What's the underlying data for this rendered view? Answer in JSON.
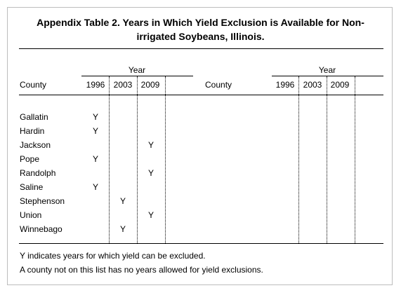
{
  "table": {
    "title_line1": "Appendix Table 2.  Years in Which Yield Exclusion is Available for Non-",
    "title_line2": "irrigated Soybeans, Illinois.",
    "year_group_label": "Year",
    "county_header": "County",
    "years": [
      "1996",
      "2003",
      "2009"
    ],
    "mark": "Y",
    "rows": [
      {
        "county": "Gallatin",
        "y1996": "Y",
        "y2003": "",
        "y2009": ""
      },
      {
        "county": "Hardin",
        "y1996": "Y",
        "y2003": "",
        "y2009": ""
      },
      {
        "county": "Jackson",
        "y1996": "",
        "y2003": "",
        "y2009": "Y"
      },
      {
        "county": "Pope",
        "y1996": "Y",
        "y2003": "",
        "y2009": ""
      },
      {
        "county": "Randolph",
        "y1996": "",
        "y2003": "",
        "y2009": "Y"
      },
      {
        "county": "Saline",
        "y1996": "Y",
        "y2003": "",
        "y2009": ""
      },
      {
        "county": "Stephenson",
        "y1996": "",
        "y2003": "Y",
        "y2009": ""
      },
      {
        "county": "Union",
        "y1996": "",
        "y2003": "",
        "y2009": "Y"
      },
      {
        "county": "Winnebago",
        "y1996": "",
        "y2003": "Y",
        "y2009": ""
      }
    ],
    "footnote1": "Y indicates years for which yield can be excluded.",
    "footnote2": "A county not on this list has no years allowed for yield exclusions."
  }
}
